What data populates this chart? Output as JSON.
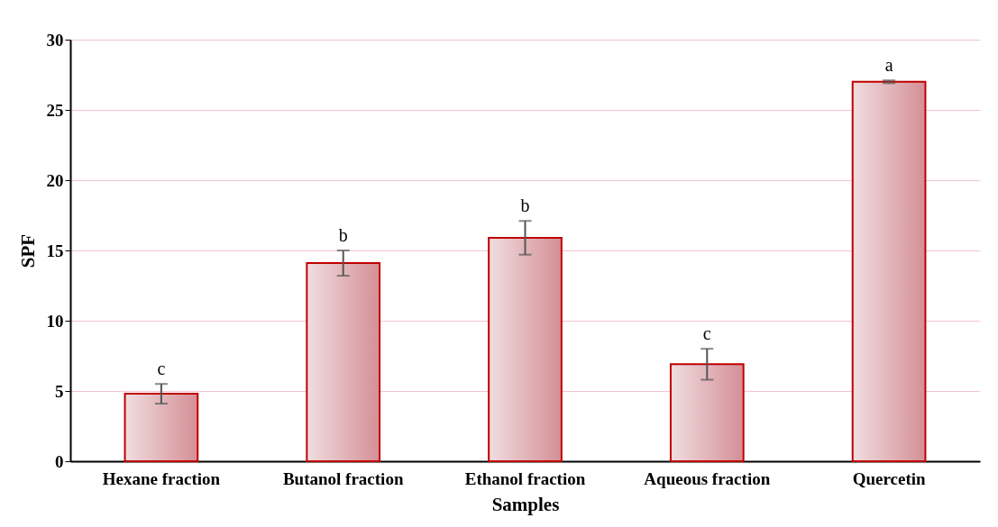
{
  "chart_data": {
    "type": "bar",
    "xlabel": "Samples",
    "ylabel": "SPF",
    "categories": [
      "Hexane fraction",
      "Butanol fraction",
      "Ethanol fraction",
      "Aqueous fraction",
      "Quercetin"
    ],
    "values": [
      4.8,
      14.1,
      15.9,
      6.9,
      27.0
    ],
    "errors": [
      0.7,
      0.9,
      1.2,
      1.1,
      0.1
    ],
    "color": "#c00000",
    "ylim": [
      0,
      30
    ],
    "yticks": [
      0,
      5,
      10,
      15,
      20,
      25,
      30
    ],
    "grid": "y",
    "annotations": [
      {
        "text": "c",
        "x": "Hexane fraction",
        "y": 5.5
      },
      {
        "text": "b",
        "x": "Butanol fraction",
        "y": 15.0
      },
      {
        "text": "b",
        "x": "Ethanol fraction",
        "y": 17.1
      },
      {
        "text": "c",
        "x": "Aqueous fraction",
        "y": 8.0
      },
      {
        "text": "a",
        "x": "Quercetin",
        "y": 27.1
      }
    ]
  }
}
